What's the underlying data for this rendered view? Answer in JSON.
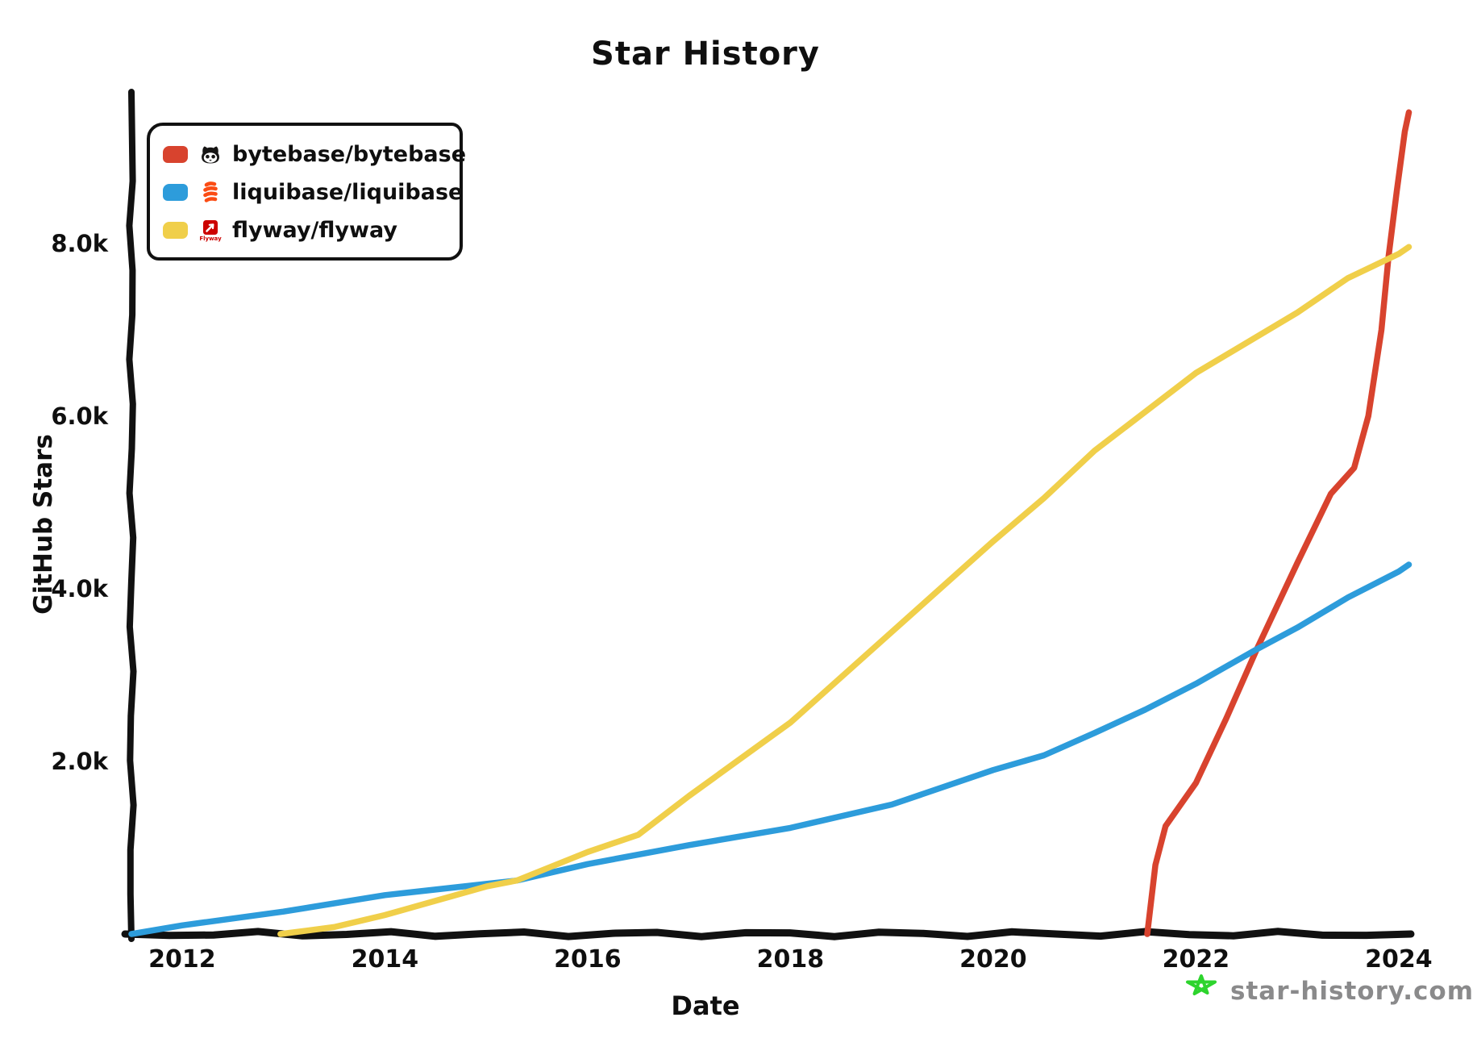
{
  "chart_data": {
    "type": "line",
    "title": "Star History",
    "xlabel": "Date",
    "ylabel": "GitHub Stars",
    "grid": false,
    "legend_position": "top-left",
    "x_unit": "year",
    "y_unit": "github-stars",
    "x_range": [
      2011.5,
      2024.12
    ],
    "y_range": [
      0,
      9700
    ],
    "x_ticks": [
      {
        "value": 2012,
        "label": "2012"
      },
      {
        "value": 2014,
        "label": "2014"
      },
      {
        "value": 2016,
        "label": "2016"
      },
      {
        "value": 2018,
        "label": "2018"
      },
      {
        "value": 2020,
        "label": "2020"
      },
      {
        "value": 2022,
        "label": "2022"
      },
      {
        "value": 2024,
        "label": "2024"
      }
    ],
    "y_ticks": [
      {
        "value": 2000,
        "label": "2.0k"
      },
      {
        "value": 4000,
        "label": "4.0k"
      },
      {
        "value": 6000,
        "label": "6.0k"
      },
      {
        "value": 8000,
        "label": "8.0k"
      }
    ],
    "series": [
      {
        "name": "bytebase/bytebase",
        "color": "#d8432e",
        "icon": "bytebase-avatar",
        "points": [
          [
            2021.52,
            0
          ],
          [
            2021.6,
            800
          ],
          [
            2021.7,
            1250
          ],
          [
            2021.85,
            1500
          ],
          [
            2022.0,
            1750
          ],
          [
            2022.3,
            2500
          ],
          [
            2022.6,
            3300
          ],
          [
            2022.8,
            3800
          ],
          [
            2023.0,
            4300
          ],
          [
            2023.33,
            5100
          ],
          [
            2023.56,
            5400
          ],
          [
            2023.7,
            6000
          ],
          [
            2023.83,
            7000
          ],
          [
            2023.9,
            7850
          ],
          [
            2023.98,
            8600
          ],
          [
            2024.06,
            9300
          ],
          [
            2024.1,
            9520
          ]
        ]
      },
      {
        "name": "liquibase/liquibase",
        "color": "#2d9cdb",
        "icon": "liquibase-logo",
        "points": [
          [
            2011.5,
            0
          ],
          [
            2012,
            100
          ],
          [
            2013,
            260
          ],
          [
            2014,
            450
          ],
          [
            2015,
            580
          ],
          [
            2015.3,
            620
          ],
          [
            2016,
            810
          ],
          [
            2017,
            1030
          ],
          [
            2018,
            1230
          ],
          [
            2019,
            1500
          ],
          [
            2020,
            1900
          ],
          [
            2020.5,
            2070
          ],
          [
            2021,
            2330
          ],
          [
            2021.5,
            2600
          ],
          [
            2022,
            2900
          ],
          [
            2022.6,
            3300
          ],
          [
            2023,
            3550
          ],
          [
            2023.5,
            3900
          ],
          [
            2024,
            4200
          ],
          [
            2024.1,
            4280
          ]
        ]
      },
      {
        "name": "flyway/flyway",
        "color": "#f0cf4a",
        "icon": "flyway-logo",
        "icon_caption": "Flyway",
        "points": [
          [
            2012.97,
            0
          ],
          [
            2013.5,
            80
          ],
          [
            2014,
            220
          ],
          [
            2015,
            550
          ],
          [
            2015.3,
            620
          ],
          [
            2016,
            950
          ],
          [
            2016.5,
            1150
          ],
          [
            2017,
            1600
          ],
          [
            2018,
            2450
          ],
          [
            2019,
            3500
          ],
          [
            2020,
            4550
          ],
          [
            2020.5,
            5050
          ],
          [
            2021,
            5600
          ],
          [
            2022,
            6500
          ],
          [
            2023,
            7200
          ],
          [
            2023.5,
            7600
          ],
          [
            2024,
            7880
          ],
          [
            2024.1,
            7960
          ]
        ]
      }
    ]
  },
  "watermark": {
    "text": "star-history.com",
    "star_color": "#2dd42d",
    "text_color": "#8a8a8b"
  }
}
